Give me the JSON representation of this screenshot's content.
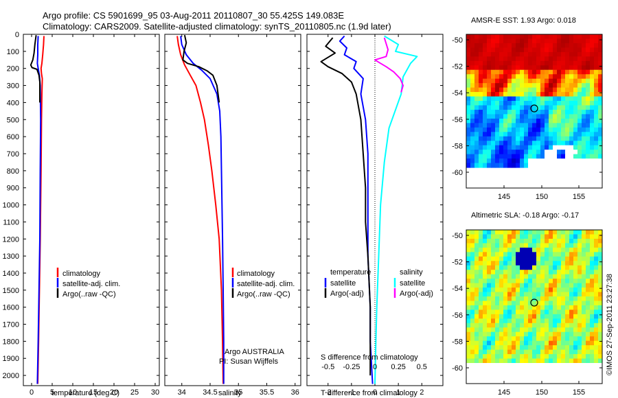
{
  "header": {
    "line1": "Argo profile: CS 5901699_95 03-Aug-2011 20110807_30 55.425S 149.083E",
    "line2": "Climatology: CARS2009. Satellite-adjusted climatology: synTS_20110805.nc (1.9d later)"
  },
  "colors": {
    "climatology": "#ff0000",
    "satellite": "#0000ff",
    "argo": "#000000",
    "sat_salinity": "#00ffff",
    "argo_salinity": "#ff00ff"
  },
  "depth_ticks": [
    0,
    100,
    200,
    300,
    400,
    500,
    600,
    700,
    800,
    900,
    1000,
    1100,
    1200,
    1300,
    1400,
    1500,
    1600,
    1700,
    1800,
    1900,
    2000
  ],
  "chart_data": [
    {
      "id": "temperature",
      "type": "line",
      "xlabel": "temperature (deg C)",
      "ylabel": "",
      "xlim": [
        -2,
        31
      ],
      "ylim": [
        2060,
        0
      ],
      "x_ticks": [
        0,
        5,
        10,
        15,
        20,
        25,
        30
      ],
      "x_tick_labels": [
        "0",
        "5",
        "10",
        "15",
        "20",
        "25",
        "30"
      ],
      "legend": [
        "climatology",
        "satellite-adj. clim.",
        "Argo(..raw -QC)"
      ],
      "series": [
        {
          "name": "climatology",
          "color": "#ff0000",
          "points": [
            [
              3.0,
              10
            ],
            [
              2.9,
              60
            ],
            [
              2.7,
              120
            ],
            [
              2.5,
              170
            ],
            [
              2.3,
              200
            ],
            [
              2.4,
              230
            ],
            [
              2.6,
              260
            ],
            [
              2.5,
              350
            ],
            [
              2.4,
              500
            ],
            [
              2.3,
              800
            ],
            [
              2.1,
              1200
            ],
            [
              1.9,
              1500
            ],
            [
              1.7,
              1800
            ],
            [
              1.5,
              2050
            ]
          ]
        },
        {
          "name": "satellite-adj. clim.",
          "color": "#0000ff",
          "points": [
            [
              1.6,
              10
            ],
            [
              1.5,
              60
            ],
            [
              1.5,
              120
            ],
            [
              1.4,
              170
            ],
            [
              1.6,
              200
            ],
            [
              1.9,
              240
            ],
            [
              2.1,
              300
            ],
            [
              2.2,
              500
            ],
            [
              2.1,
              800
            ],
            [
              2.0,
              1200
            ],
            [
              1.8,
              1500
            ],
            [
              1.6,
              1800
            ],
            [
              1.4,
              2050
            ]
          ]
        },
        {
          "name": "Argo(..raw -QC)",
          "color": "#000000",
          "points": [
            [
              1.1,
              5
            ],
            [
              0.8,
              60
            ],
            [
              0.6,
              110
            ],
            [
              0.3,
              150
            ],
            [
              -0.2,
              180
            ],
            [
              0.1,
              195
            ],
            [
              1.3,
              205
            ],
            [
              1.8,
              240
            ],
            [
              2.0,
              280
            ],
            [
              2.0,
              400
            ]
          ]
        }
      ]
    },
    {
      "id": "salinity",
      "type": "line",
      "xlabel": "salinity",
      "ylabel": "",
      "xlim": [
        33.7,
        36.1
      ],
      "ylim": [
        2060,
        0
      ],
      "x_ticks": [
        34,
        34.5,
        35,
        35.5,
        36
      ],
      "x_tick_labels": [
        "34",
        "34.5",
        "35",
        "35.5",
        "36"
      ],
      "legend": [
        "climatology",
        "satellite-adj. clim.",
        "Argo(..raw -QC)"
      ],
      "annotation": [
        "Argo AUSTRALIA",
        "PI: Susan Wijffels"
      ],
      "series": [
        {
          "name": "climatology",
          "color": "#ff0000",
          "points": [
            [
              33.92,
              10
            ],
            [
              33.94,
              60
            ],
            [
              33.98,
              120
            ],
            [
              34.05,
              180
            ],
            [
              34.15,
              240
            ],
            [
              34.25,
              300
            ],
            [
              34.33,
              400
            ],
            [
              34.4,
              500
            ],
            [
              34.47,
              650
            ],
            [
              34.53,
              800
            ],
            [
              34.6,
              1000
            ],
            [
              34.66,
              1200
            ],
            [
              34.7,
              1500
            ],
            [
              34.72,
              1800
            ],
            [
              34.73,
              2050
            ]
          ]
        },
        {
          "name": "satellite-adj. clim.",
          "color": "#0000ff",
          "points": [
            [
              33.98,
              10
            ],
            [
              34.0,
              60
            ],
            [
              34.08,
              120
            ],
            [
              34.2,
              170
            ],
            [
              34.35,
              210
            ],
            [
              34.5,
              260
            ],
            [
              34.62,
              350
            ],
            [
              34.67,
              450
            ],
            [
              34.69,
              600
            ],
            [
              34.7,
              800
            ],
            [
              34.71,
              1000
            ],
            [
              34.72,
              1200
            ],
            [
              34.73,
              1500
            ],
            [
              34.74,
              1800
            ],
            [
              34.74,
              2050
            ]
          ]
        },
        {
          "name": "Argo(..raw -QC)",
          "color": "#000000",
          "points": [
            [
              34.05,
              5
            ],
            [
              34.08,
              50
            ],
            [
              34.04,
              100
            ],
            [
              34.02,
              150
            ],
            [
              34.1,
              170
            ],
            [
              34.3,
              190
            ],
            [
              34.45,
              215
            ],
            [
              34.55,
              240
            ],
            [
              34.62,
              300
            ],
            [
              34.66,
              400
            ]
          ]
        }
      ]
    },
    {
      "id": "difference",
      "type": "line",
      "xlabel": "T difference from climatology",
      "x2label": "S difference from climatology",
      "ylabel": "",
      "xlim": [
        -2.9,
        2.9
      ],
      "ylim": [
        2060,
        0
      ],
      "x_ticks": [
        -2,
        -1,
        0,
        1,
        2
      ],
      "x_tick_labels": [
        "-2",
        "-1",
        "0",
        "1",
        "2"
      ],
      "x2_ticks": [
        -0.5,
        -0.25,
        0,
        0.25,
        0.5
      ],
      "x2_tick_labels": [
        "-0.5",
        "-0.25",
        "0",
        "0.25",
        "0.5"
      ],
      "legend_temperature": {
        "title": "temperature",
        "items": [
          "satellite",
          "Argo(-adj)"
        ]
      },
      "legend_salinity": {
        "title": "salinity",
        "items": [
          "satellite",
          "Argo(-adj)"
        ]
      },
      "series": [
        {
          "name": "temperature satellite",
          "color": "#0000ff",
          "points": [
            [
              -1.3,
              10
            ],
            [
              -1.5,
              40
            ],
            [
              -1.2,
              80
            ],
            [
              -1.3,
              120
            ],
            [
              -0.8,
              160
            ],
            [
              -0.9,
              200
            ],
            [
              -0.5,
              260
            ],
            [
              -0.6,
              350
            ],
            [
              -0.4,
              500
            ],
            [
              -0.3,
              700
            ],
            [
              -0.3,
              1000
            ],
            [
              -0.3,
              1300
            ],
            [
              -0.2,
              1600
            ],
            [
              -0.2,
              1800
            ],
            [
              -0.1,
              2050
            ]
          ]
        },
        {
          "name": "temperature Argo(-adj)",
          "color": "#000000",
          "points": [
            [
              -1.8,
              20
            ],
            [
              -2.1,
              70
            ],
            [
              -1.7,
              110
            ],
            [
              -2.3,
              160
            ],
            [
              -2.0,
              190
            ],
            [
              -1.4,
              230
            ],
            [
              -1.0,
              280
            ],
            [
              -0.8,
              350
            ],
            [
              -0.6,
              500
            ],
            [
              -0.5,
              700
            ],
            [
              -0.4,
              900
            ],
            [
              -0.4,
              1100
            ],
            [
              -0.3,
              1300
            ],
            [
              -0.2,
              1600
            ],
            [
              -0.2,
              1800
            ],
            [
              -0.2,
              2000
            ]
          ]
        },
        {
          "name": "salinity satellite",
          "color": "#00ffff",
          "points": [
            [
              0.1,
              10
            ],
            [
              0.25,
              60
            ],
            [
              0.22,
              100
            ],
            [
              0.45,
              130
            ],
            [
              0.38,
              170
            ],
            [
              0.3,
              250
            ],
            [
              0.28,
              350
            ],
            [
              0.15,
              550
            ],
            [
              0.1,
              750
            ],
            [
              0.06,
              1000
            ],
            [
              0.04,
              1300
            ],
            [
              0.02,
              1600
            ],
            [
              0.01,
              1800
            ],
            [
              0.0,
              2050
            ]
          ]
        },
        {
          "name": "salinity Argo(-adj)",
          "color": "#ff00ff",
          "points": [
            [
              0.1,
              20
            ],
            [
              0.14,
              90
            ],
            [
              0.12,
              130
            ],
            [
              0.0,
              150
            ],
            [
              0.06,
              170
            ],
            [
              0.12,
              190
            ],
            [
              0.2,
              220
            ],
            [
              0.27,
              260
            ],
            [
              0.3,
              300
            ],
            [
              0.28,
              340
            ]
          ]
        }
      ]
    }
  ],
  "maps": [
    {
      "title": "AMSR-E SST: 1.93 Argo: 0.018",
      "y_ticks": [
        "-50",
        "-52",
        "-54",
        "-56",
        "-58",
        "-60"
      ],
      "x_ticks": [
        "145",
        "150",
        "155"
      ]
    },
    {
      "title": "Altimetric SLA: -0.18 Argo: -0.17",
      "y_ticks": [
        "-50",
        "-52",
        "-54",
        "-56",
        "-58",
        "-60"
      ],
      "x_ticks": [
        "145",
        "150",
        "155"
      ]
    }
  ],
  "footer": {
    "stamp": "©IMOS 27-Sep-2011 23:27:38"
  }
}
